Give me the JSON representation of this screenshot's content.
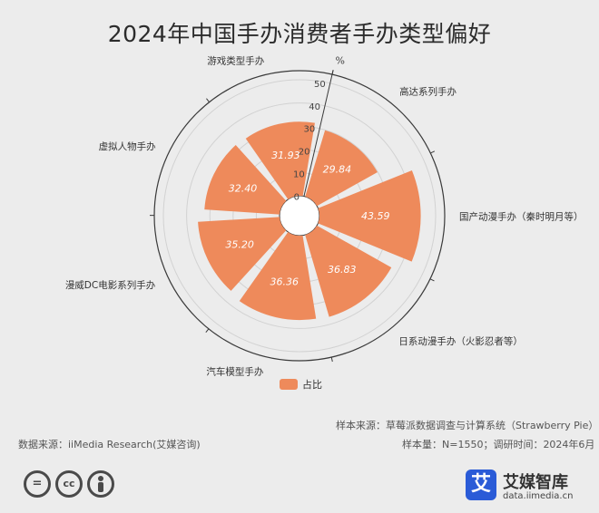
{
  "page": {
    "title": "2024年中国手办消费者手办类型偏好"
  },
  "chart_data": {
    "type": "polar-bar",
    "title": "2024年中国手办消费者手办类型偏好",
    "unit": "%",
    "radial_axis": {
      "min": 0,
      "max": 50,
      "ticks": [
        0,
        10,
        20,
        30,
        40,
        50
      ]
    },
    "categories": [
      "高达系列手办",
      "国产动漫手办（秦时明月等）",
      "日系动漫手办（火影忍者等）",
      "汽车模型手办",
      "漫威DC电影系列手办",
      "虚拟人物手办",
      "游戏类型手办"
    ],
    "series": [
      {
        "name": "占比",
        "color": "#ee8a5b",
        "values": [
          29.84,
          43.59,
          36.83,
          36.36,
          35.2,
          32.4,
          31.93
        ]
      }
    ],
    "legend_position": "bottom"
  },
  "footer": {
    "data_source": "数据来源：iiMedia Research(艾媒咨询)",
    "sample_source": "样本来源：草莓派数据调查与计算系统（Strawberry Pie）",
    "sample_info": "样本量：N=1550；调研时间：2024年6月"
  },
  "license_icons": [
    "equals-icon",
    "cc-icon",
    "person-icon"
  ],
  "brand": {
    "logo_char": "艾",
    "name": "艾媒智库",
    "url": "data.iimedia.cn",
    "color": "#2a5bd7"
  }
}
